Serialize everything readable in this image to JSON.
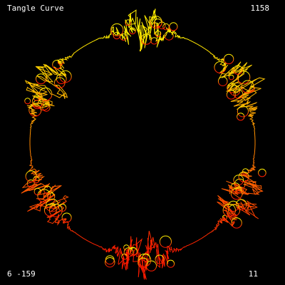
{
  "hud": {
    "title": "Tangle Curve",
    "counter": "1158",
    "params": "6 -159",
    "level": "11"
  },
  "curve": {
    "background": "#000000",
    "gradient_top": "#ffee00",
    "gradient_mid": "#ff8800",
    "gradient_bottom": "#ff1a00",
    "lobes": 6
  }
}
